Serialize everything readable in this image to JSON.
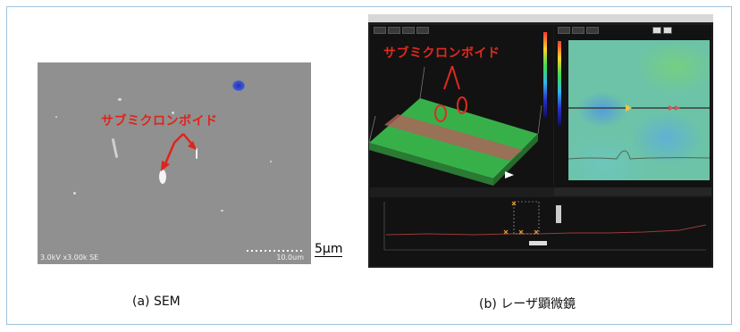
{
  "sem_panel": {
    "annotation": "サブミクロンボイド",
    "info_text": "3.0kV x3.00k SE",
    "scale_text": "10.0um",
    "scale_marker": "5μm",
    "caption": "(a) SEM"
  },
  "laser_panel": {
    "annotation": "サブミクロンボイド",
    "caption": "(b) レーザ顕微鏡"
  },
  "colors": {
    "annotation_red": "#e0241a",
    "frame_border": "#9fc3de"
  }
}
